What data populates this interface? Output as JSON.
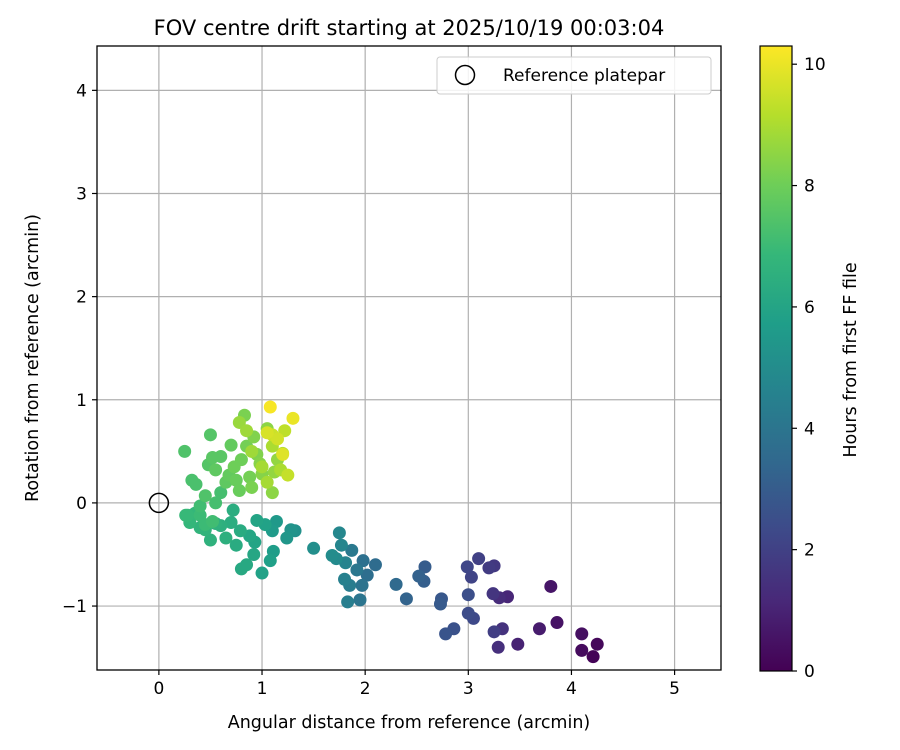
{
  "chart_data": {
    "type": "scatter",
    "title": "FOV centre drift starting at 2025/10/19 00:03:04",
    "xlabel": "Angular distance from reference (arcmin)",
    "ylabel": "Rotation from reference (arcmin)",
    "xlim": [
      -0.6,
      5.45
    ],
    "ylim": [
      -1.62,
      4.43
    ],
    "xticks": [
      0,
      1,
      2,
      3,
      4,
      5
    ],
    "xtick_labels": [
      "0",
      "1",
      "2",
      "3",
      "4",
      "5"
    ],
    "yticks": [
      -1,
      0,
      1,
      2,
      3,
      4
    ],
    "ytick_labels": [
      "−1",
      "0",
      "1",
      "2",
      "3",
      "4"
    ],
    "grid": true,
    "legend": {
      "position": "top-right",
      "entries": [
        "Reference platepar"
      ]
    },
    "reference_point": {
      "name": "Reference platepar",
      "x": 0,
      "y": 0
    },
    "colorbar": {
      "label": "Hours from first FF file",
      "min": 0,
      "max": 10.3,
      "ticks": [
        0,
        2,
        4,
        6,
        8,
        10
      ],
      "tick_labels": [
        "0",
        "2",
        "4",
        "6",
        "8",
        "10"
      ],
      "colormap": [
        "#440154",
        "#482878",
        "#3e4989",
        "#31688e",
        "#26828e",
        "#1f9e89",
        "#35b779",
        "#6ece58",
        "#b5de2b",
        "#fde725"
      ]
    },
    "series": [
      {
        "name": "FOV centre",
        "points": [
          [
            4.21,
            -1.49,
            0.1
          ],
          [
            4.25,
            -1.37,
            0.2
          ],
          [
            4.1,
            -1.43,
            0.3
          ],
          [
            4.1,
            -1.27,
            0.4
          ],
          [
            3.86,
            -1.16,
            0.5
          ],
          [
            3.8,
            -0.81,
            0.6
          ],
          [
            3.69,
            -1.22,
            0.8
          ],
          [
            3.48,
            -1.37,
            1.0
          ],
          [
            3.38,
            -0.91,
            1.1
          ],
          [
            3.3,
            -0.92,
            1.3
          ],
          [
            3.29,
            -1.4,
            1.4
          ],
          [
            3.33,
            -1.22,
            1.5
          ],
          [
            3.24,
            -0.88,
            1.6
          ],
          [
            3.25,
            -0.61,
            1.7
          ],
          [
            3.2,
            -0.63,
            1.8
          ],
          [
            3.25,
            -1.25,
            1.9
          ],
          [
            3.1,
            -0.54,
            2.0
          ],
          [
            3.03,
            -0.72,
            2.1
          ],
          [
            2.99,
            -0.62,
            2.2
          ],
          [
            3.05,
            -1.12,
            2.3
          ],
          [
            3.0,
            -1.07,
            2.4
          ],
          [
            3.0,
            -0.89,
            2.5
          ],
          [
            2.86,
            -1.22,
            2.6
          ],
          [
            2.78,
            -1.27,
            2.7
          ],
          [
            2.74,
            -0.93,
            2.8
          ],
          [
            2.73,
            -0.98,
            2.9
          ],
          [
            2.58,
            -0.62,
            3.0
          ],
          [
            2.57,
            -0.76,
            3.1
          ],
          [
            2.52,
            -0.71,
            3.2
          ],
          [
            2.4,
            -0.93,
            3.3
          ],
          [
            2.3,
            -0.79,
            3.5
          ],
          [
            2.1,
            -0.6,
            3.6
          ],
          [
            2.02,
            -0.7,
            3.7
          ],
          [
            1.98,
            -0.56,
            3.8
          ],
          [
            1.97,
            -0.8,
            3.9
          ],
          [
            1.95,
            -0.94,
            4.0
          ],
          [
            1.92,
            -0.65,
            4.1
          ],
          [
            1.87,
            -0.46,
            4.2
          ],
          [
            1.85,
            -0.8,
            4.3
          ],
          [
            1.83,
            -0.96,
            4.4
          ],
          [
            1.8,
            -0.74,
            4.5
          ],
          [
            1.81,
            -0.58,
            4.6
          ],
          [
            1.77,
            -0.41,
            4.7
          ],
          [
            1.75,
            -0.29,
            4.8
          ],
          [
            1.72,
            -0.54,
            4.9
          ],
          [
            1.68,
            -0.51,
            5.0
          ],
          [
            1.5,
            -0.44,
            5.1
          ],
          [
            1.32,
            -0.27,
            5.2
          ],
          [
            1.28,
            -0.26,
            5.3
          ],
          [
            1.24,
            -0.34,
            5.4
          ],
          [
            1.14,
            -0.18,
            5.5
          ],
          [
            1.1,
            -0.27,
            5.6
          ],
          [
            1.11,
            -0.47,
            5.7
          ],
          [
            1.08,
            -0.56,
            5.8
          ],
          [
            1.03,
            -0.21,
            5.9
          ],
          [
            1.0,
            -0.68,
            5.9
          ],
          [
            0.95,
            -0.17,
            6.0
          ],
          [
            0.93,
            -0.38,
            6.0
          ],
          [
            0.92,
            -0.5,
            6.1
          ],
          [
            0.88,
            -0.32,
            6.1
          ],
          [
            0.85,
            -0.6,
            6.2
          ],
          [
            0.8,
            -0.64,
            6.2
          ],
          [
            0.79,
            -0.27,
            6.3
          ],
          [
            0.75,
            -0.41,
            6.3
          ],
          [
            0.72,
            -0.07,
            6.4
          ],
          [
            0.7,
            -0.19,
            6.4
          ],
          [
            0.65,
            -0.34,
            6.5
          ],
          [
            0.6,
            -0.22,
            6.5
          ],
          [
            0.55,
            -0.2,
            6.6
          ],
          [
            0.5,
            -0.36,
            6.6
          ],
          [
            0.45,
            -0.26,
            6.7
          ],
          [
            0.4,
            -0.24,
            6.7
          ],
          [
            0.35,
            -0.1,
            6.8
          ],
          [
            0.3,
            -0.19,
            6.8
          ],
          [
            0.26,
            -0.12,
            6.9
          ],
          [
            0.28,
            -0.12,
            6.9
          ],
          [
            0.4,
            -0.12,
            7.0
          ],
          [
            0.45,
            -0.21,
            7.0
          ],
          [
            0.4,
            -0.03,
            7.1
          ],
          [
            0.52,
            -0.18,
            7.1
          ],
          [
            0.55,
            0.0,
            7.2
          ],
          [
            0.6,
            0.1,
            7.2
          ],
          [
            0.32,
            0.22,
            7.3
          ],
          [
            0.36,
            0.18,
            7.3
          ],
          [
            0.45,
            0.07,
            7.4
          ],
          [
            0.25,
            0.5,
            7.4
          ],
          [
            0.5,
            0.66,
            7.5
          ],
          [
            0.48,
            0.37,
            7.5
          ],
          [
            0.52,
            0.44,
            7.6
          ],
          [
            0.6,
            0.45,
            7.6
          ],
          [
            0.55,
            0.32,
            7.7
          ],
          [
            0.65,
            0.2,
            7.7
          ],
          [
            0.7,
            0.56,
            7.8
          ],
          [
            0.68,
            0.27,
            7.8
          ],
          [
            0.75,
            0.22,
            7.9
          ],
          [
            0.78,
            0.12,
            7.9
          ],
          [
            0.8,
            0.42,
            8.0
          ],
          [
            0.73,
            0.35,
            8.0
          ],
          [
            0.85,
            0.55,
            8.1
          ],
          [
            0.88,
            0.25,
            8.1
          ],
          [
            0.9,
            0.15,
            8.2
          ],
          [
            0.83,
            0.85,
            8.2
          ],
          [
            0.95,
            0.47,
            8.3
          ],
          [
            0.92,
            0.64,
            8.3
          ],
          [
            0.98,
            0.38,
            8.4
          ],
          [
            1.0,
            0.28,
            8.4
          ],
          [
            1.05,
            0.72,
            8.5
          ],
          [
            1.1,
            0.1,
            8.5
          ],
          [
            1.12,
            0.3,
            8.6
          ],
          [
            1.15,
            0.42,
            8.6
          ],
          [
            0.78,
            0.78,
            8.7
          ],
          [
            0.85,
            0.7,
            8.8
          ],
          [
            0.9,
            0.5,
            8.8
          ],
          [
            1.0,
            0.35,
            8.9
          ],
          [
            1.05,
            0.2,
            8.9
          ],
          [
            1.1,
            0.55,
            9.0
          ],
          [
            1.18,
            0.32,
            9.0
          ],
          [
            1.2,
            0.48,
            9.2
          ],
          [
            1.22,
            0.7,
            9.3
          ],
          [
            1.25,
            0.27,
            9.4
          ],
          [
            1.1,
            0.66,
            9.5
          ],
          [
            1.15,
            0.62,
            9.6
          ],
          [
            1.05,
            0.68,
            9.7
          ],
          [
            1.2,
            0.47,
            9.8
          ],
          [
            1.3,
            0.82,
            10.0
          ],
          [
            1.08,
            0.93,
            10.2
          ]
        ]
      }
    ]
  }
}
